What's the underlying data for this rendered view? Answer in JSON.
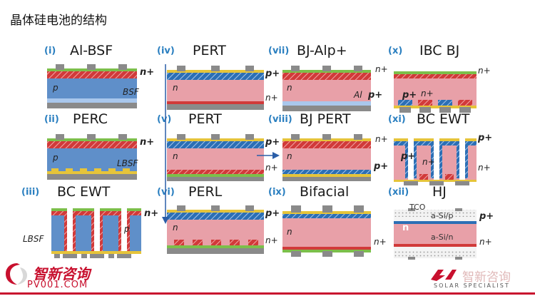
{
  "title": "晶体硅电池的结构",
  "panels": [
    {
      "num": "(i)",
      "name": "Al-BSF",
      "labels": [
        "n+",
        "p",
        "BSF"
      ]
    },
    {
      "num": "(ii)",
      "name": "PERC",
      "labels": [
        "n+",
        "p",
        "LBSF"
      ]
    },
    {
      "num": "(iii)",
      "name": "BC EWT",
      "labels": [
        "n+",
        "p",
        "LBSF"
      ]
    },
    {
      "num": "(iv)",
      "name": "PERT",
      "labels": [
        "p+",
        "n",
        "n+"
      ]
    },
    {
      "num": "(v)",
      "name": "PERT",
      "labels": [
        "p+",
        "n",
        "n+"
      ]
    },
    {
      "num": "(vi)",
      "name": "PERL",
      "labels": [
        "p+",
        "n",
        "n+"
      ]
    },
    {
      "num": "(vii)",
      "name": "BJ-Alp+",
      "labels": [
        "n+",
        "n",
        "Al",
        "p+"
      ]
    },
    {
      "num": "(viii)",
      "name": "BJ PERT",
      "labels": [
        "n+",
        "n",
        "p+"
      ]
    },
    {
      "num": "(ix)",
      "name": "Bifacial",
      "labels": [
        "n",
        "n+"
      ]
    },
    {
      "num": "(x)",
      "name": "IBC BJ",
      "labels": [
        "n+",
        "p+",
        "n+"
      ]
    },
    {
      "num": "(xi)",
      "name": "BC EWT",
      "labels": [
        "p+",
        "p+",
        "n+",
        "n+"
      ]
    },
    {
      "num": "(xii)",
      "name": "HJ",
      "labels": [
        "TCO",
        "a-Si/p",
        "n",
        "a-Si/n",
        "p+",
        "n+"
      ]
    }
  ],
  "logo_left": {
    "name": "智新咨询",
    "url": "PV001.COM"
  },
  "logo_right": {
    "name": "智新咨询",
    "tagline": "SOLAR SPECIALIST"
  },
  "colors": {
    "n_region": "#e8a0a8",
    "p_region": "#5f8fc9",
    "n_plus": "#d13a3a",
    "p_plus": "#2c6fb5",
    "contact": "#8a8a8a",
    "passivation": "#e6c43a",
    "arc": "#7cbf4a",
    "tco": "#e6e6e6"
  }
}
